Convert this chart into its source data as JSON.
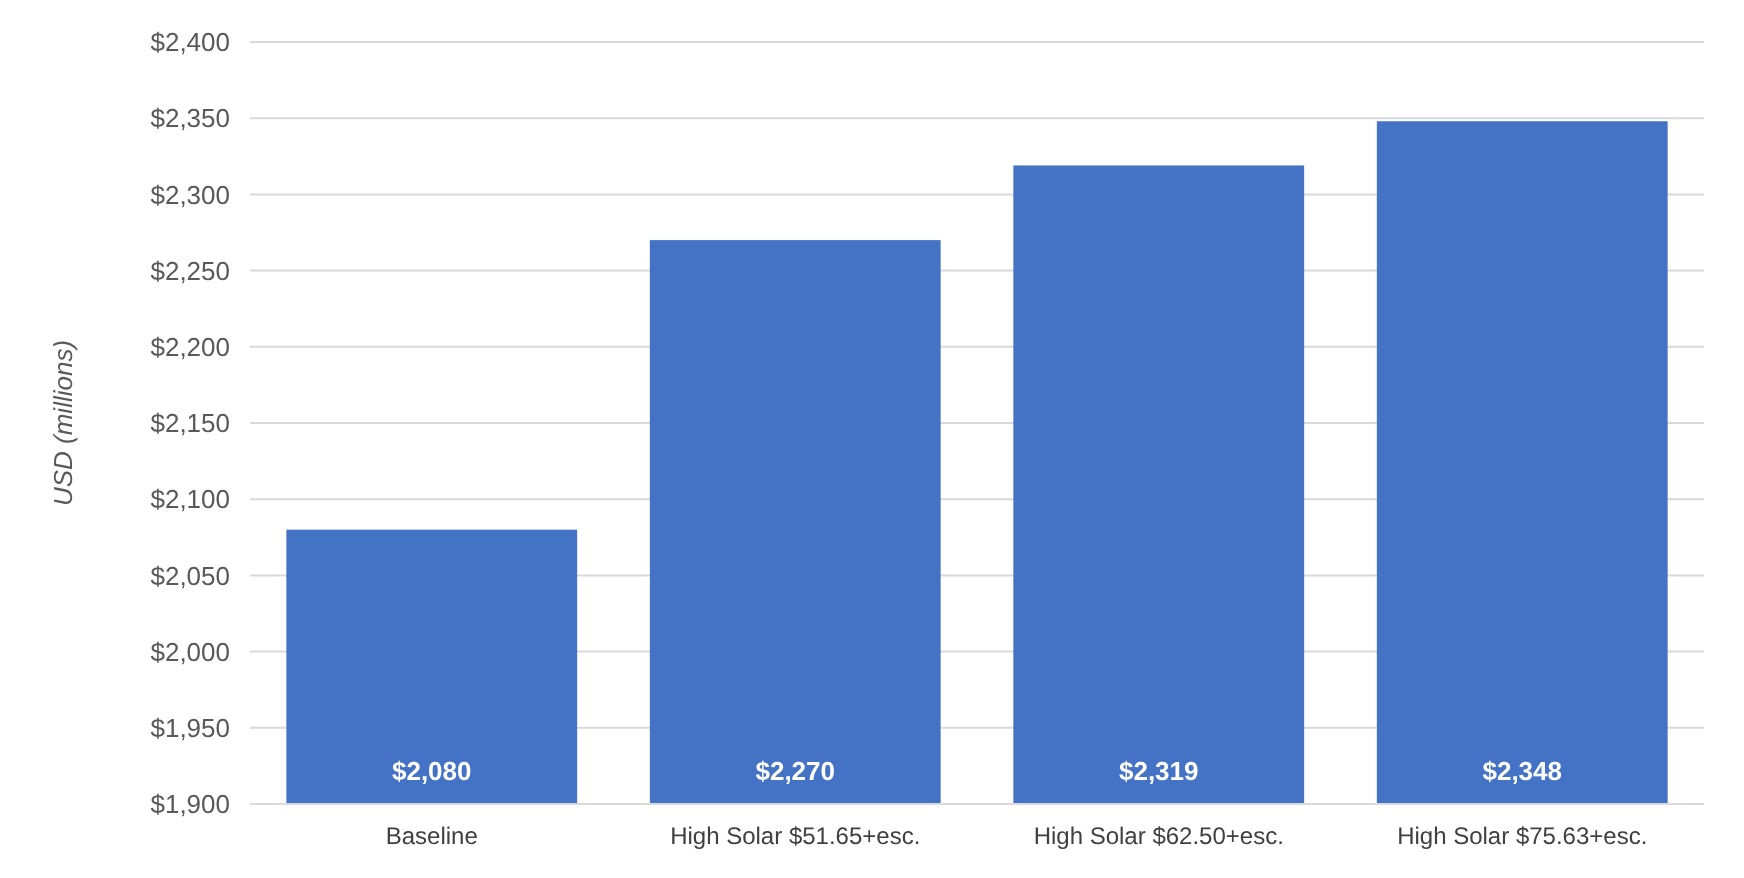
{
  "chart_data": {
    "type": "bar",
    "ylabel": "USD (millions)",
    "categories": [
      "Baseline",
      "High Solar $51.65+esc.",
      "High Solar $62.50+esc.",
      "High Solar $75.63+esc."
    ],
    "values": [
      2080,
      2270,
      2319,
      2348
    ],
    "color": "#4472c4",
    "value_labels": [
      "$2,080",
      "$2,270",
      "$2,319",
      "$2,348"
    ],
    "ylim": [
      1900,
      2400
    ],
    "yticks": [
      {
        "value": 1900,
        "label": "$1,900"
      },
      {
        "value": 1950,
        "label": "$1,950"
      },
      {
        "value": 2000,
        "label": "$2,000"
      },
      {
        "value": 2050,
        "label": "$2,050"
      },
      {
        "value": 2100,
        "label": "$2,100"
      },
      {
        "value": 2150,
        "label": "$2,150"
      },
      {
        "value": 2200,
        "label": "$2,200"
      },
      {
        "value": 2250,
        "label": "$2,250"
      },
      {
        "value": 2300,
        "label": "$2,300"
      },
      {
        "value": 2350,
        "label": "$2,350"
      },
      {
        "value": 2400,
        "label": "$2,400"
      }
    ],
    "grid": "y"
  }
}
